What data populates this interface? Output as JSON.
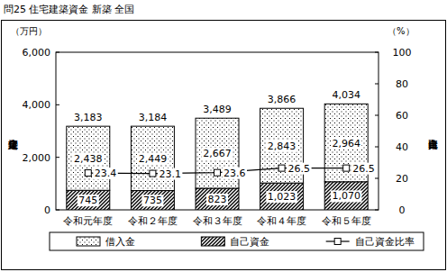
{
  "chart_data": {
    "type": "bar",
    "title": "問25 住宅建築資金 新築 全国",
    "y_label": "住宅建築資金",
    "y_unit": "（万円）",
    "y2_label": "自己資金比率",
    "y2_unit": "（%）",
    "categories": [
      "令和元年度",
      "令和２年度",
      "令和３年度",
      "令和４年度",
      "令和５年度"
    ],
    "stacked": true,
    "data_labels": true,
    "grid": false,
    "legend": "bottom",
    "ylim": [
      0,
      6000
    ],
    "yticks": [
      0,
      {
        "value": 2000,
        "label": "2,000"
      },
      {
        "value": 4000,
        "label": "4,000"
      },
      {
        "value": 6000,
        "label": "6,000"
      }
    ],
    "y2lim": [
      0,
      100
    ],
    "y2ticks": [
      0,
      20,
      40,
      60,
      80,
      100
    ],
    "series": [
      {
        "name": "借入金",
        "type": "bar",
        "color": "#000000",
        "values": [
          2438,
          2449,
          2667,
          2843,
          2964
        ],
        "value_labels": [
          "2,438",
          "2,449",
          "2,667",
          "2,843",
          "2,964"
        ]
      },
      {
        "name": "自己資金",
        "type": "bar",
        "color": "#000000",
        "values": [
          745,
          735,
          823,
          1023,
          1070
        ],
        "value_labels": [
          "745",
          "735",
          "823",
          "1,023",
          "1,070"
        ]
      },
      {
        "name": "自己資金比率",
        "type": "line",
        "axis": "y2",
        "color": "#000000",
        "marker": "square",
        "values": [
          23.4,
          23.1,
          23.6,
          26.5,
          26.5
        ]
      }
    ],
    "totals": [
      3183,
      3184,
      3489,
      3866,
      4034
    ],
    "total_labels": [
      "3,183",
      "3,184",
      "3,489",
      "3,866",
      "4,034"
    ]
  }
}
